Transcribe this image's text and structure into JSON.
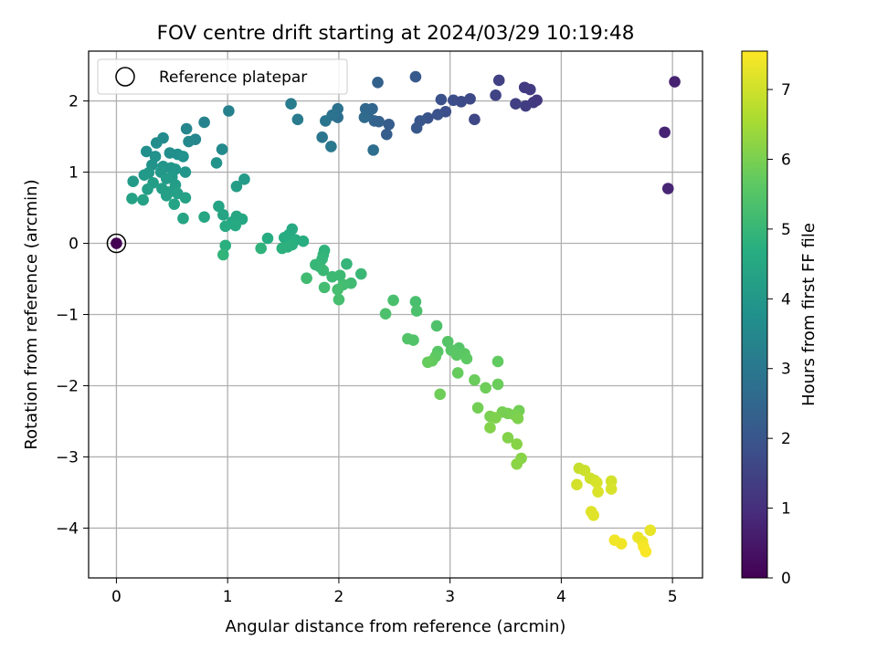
{
  "chart_data": {
    "type": "scatter",
    "title": "FOV centre drift starting at 2024/03/29 10:19:48",
    "xlabel": "Angular distance from reference (arcmin)",
    "ylabel": "Rotation from reference (arcmin)",
    "xlim": [
      -0.25,
      5.27
    ],
    "ylim": [
      -4.7,
      2.7
    ],
    "xticks": [
      0,
      1,
      2,
      3,
      4,
      5
    ],
    "yticks": [
      -4,
      -3,
      -2,
      -1,
      0,
      1,
      2
    ],
    "grid": true,
    "legend": {
      "placement": "top-left",
      "entries": [
        "Reference platepar"
      ]
    },
    "reference_point": {
      "x": 0,
      "y": 0
    },
    "colorbar": {
      "label": "Hours from first FF file",
      "range": [
        0,
        7.55
      ],
      "ticks": [
        0,
        1,
        2,
        3,
        4,
        5,
        6,
        7
      ],
      "colormap": "viridis"
    },
    "points": [
      {
        "x": 0.0,
        "y": 0.0,
        "h": 0.0
      },
      {
        "x": 5.02,
        "y": 2.27,
        "h": 0.7
      },
      {
        "x": 4.93,
        "y": 1.56,
        "h": 0.75
      },
      {
        "x": 4.96,
        "y": 0.77,
        "h": 0.8
      },
      {
        "x": 3.78,
        "y": 2.01,
        "h": 1.2
      },
      {
        "x": 3.75,
        "y": 1.98,
        "h": 1.25
      },
      {
        "x": 3.72,
        "y": 2.16,
        "h": 1.3
      },
      {
        "x": 3.67,
        "y": 2.19,
        "h": 1.3
      },
      {
        "x": 3.68,
        "y": 1.93,
        "h": 1.35
      },
      {
        "x": 3.59,
        "y": 1.96,
        "h": 1.4
      },
      {
        "x": 3.44,
        "y": 2.29,
        "h": 1.45
      },
      {
        "x": 3.41,
        "y": 2.08,
        "h": 1.5
      },
      {
        "x": 3.22,
        "y": 1.74,
        "h": 1.6
      },
      {
        "x": 3.18,
        "y": 2.03,
        "h": 1.65
      },
      {
        "x": 3.1,
        "y": 1.99,
        "h": 1.7
      },
      {
        "x": 3.03,
        "y": 2.01,
        "h": 1.75
      },
      {
        "x": 2.96,
        "y": 1.85,
        "h": 1.8
      },
      {
        "x": 2.92,
        "y": 2.02,
        "h": 1.85
      },
      {
        "x": 2.89,
        "y": 1.81,
        "h": 1.9
      },
      {
        "x": 2.8,
        "y": 1.76,
        "h": 1.95
      },
      {
        "x": 2.73,
        "y": 1.72,
        "h": 2.0
      },
      {
        "x": 2.7,
        "y": 1.62,
        "h": 2.05
      },
      {
        "x": 2.69,
        "y": 2.34,
        "h": 2.1
      },
      {
        "x": 2.45,
        "y": 1.67,
        "h": 2.2
      },
      {
        "x": 2.43,
        "y": 1.53,
        "h": 2.25
      },
      {
        "x": 2.35,
        "y": 2.26,
        "h": 2.3
      },
      {
        "x": 2.36,
        "y": 1.71,
        "h": 2.35
      },
      {
        "x": 2.32,
        "y": 1.72,
        "h": 2.4
      },
      {
        "x": 2.3,
        "y": 1.89,
        "h": 2.45
      },
      {
        "x": 2.26,
        "y": 1.8,
        "h": 2.5
      },
      {
        "x": 2.24,
        "y": 1.89,
        "h": 2.55
      },
      {
        "x": 2.23,
        "y": 1.77,
        "h": 2.6
      },
      {
        "x": 2.31,
        "y": 1.31,
        "h": 2.7
      },
      {
        "x": 1.99,
        "y": 1.77,
        "h": 2.75
      },
      {
        "x": 1.99,
        "y": 1.89,
        "h": 2.8
      },
      {
        "x": 1.94,
        "y": 1.8,
        "h": 2.85
      },
      {
        "x": 1.88,
        "y": 1.72,
        "h": 2.9
      },
      {
        "x": 1.85,
        "y": 1.49,
        "h": 2.95
      },
      {
        "x": 1.93,
        "y": 1.36,
        "h": 3.0
      },
      {
        "x": 1.63,
        "y": 1.74,
        "h": 3.1
      },
      {
        "x": 1.57,
        "y": 1.96,
        "h": 3.15
      },
      {
        "x": 1.01,
        "y": 1.86,
        "h": 3.3
      },
      {
        "x": 0.79,
        "y": 1.7,
        "h": 3.35
      },
      {
        "x": 0.63,
        "y": 1.61,
        "h": 3.4
      },
      {
        "x": 0.71,
        "y": 1.46,
        "h": 3.45
      },
      {
        "x": 0.65,
        "y": 1.43,
        "h": 3.5
      },
      {
        "x": 0.95,
        "y": 1.32,
        "h": 3.55
      },
      {
        "x": 0.42,
        "y": 1.48,
        "h": 3.6
      },
      {
        "x": 0.36,
        "y": 1.41,
        "h": 3.65
      },
      {
        "x": 0.27,
        "y": 1.29,
        "h": 3.7
      },
      {
        "x": 0.48,
        "y": 1.27,
        "h": 3.7
      },
      {
        "x": 0.55,
        "y": 1.25,
        "h": 3.75
      },
      {
        "x": 0.6,
        "y": 1.22,
        "h": 3.8
      },
      {
        "x": 0.35,
        "y": 1.22,
        "h": 3.8
      },
      {
        "x": 0.9,
        "y": 1.13,
        "h": 3.85
      },
      {
        "x": 0.32,
        "y": 1.1,
        "h": 3.85
      },
      {
        "x": 0.42,
        "y": 1.08,
        "h": 3.9
      },
      {
        "x": 0.49,
        "y": 1.06,
        "h": 3.9
      },
      {
        "x": 0.53,
        "y": 1.04,
        "h": 3.95
      },
      {
        "x": 0.62,
        "y": 1.0,
        "h": 3.95
      },
      {
        "x": 0.4,
        "y": 1.0,
        "h": 4.0
      },
      {
        "x": 0.29,
        "y": 0.99,
        "h": 4.0
      },
      {
        "x": 0.25,
        "y": 0.96,
        "h": 4.05
      },
      {
        "x": 0.5,
        "y": 0.93,
        "h": 4.05
      },
      {
        "x": 0.45,
        "y": 0.91,
        "h": 4.1
      },
      {
        "x": 1.15,
        "y": 0.9,
        "h": 4.1
      },
      {
        "x": 0.15,
        "y": 0.87,
        "h": 4.1
      },
      {
        "x": 0.33,
        "y": 0.85,
        "h": 4.15
      },
      {
        "x": 0.53,
        "y": 0.82,
        "h": 4.15
      },
      {
        "x": 1.08,
        "y": 0.8,
        "h": 4.15
      },
      {
        "x": 0.41,
        "y": 0.77,
        "h": 4.2
      },
      {
        "x": 0.28,
        "y": 0.76,
        "h": 4.2
      },
      {
        "x": 0.47,
        "y": 0.72,
        "h": 4.2
      },
      {
        "x": 0.55,
        "y": 0.7,
        "h": 4.25
      },
      {
        "x": 0.45,
        "y": 0.67,
        "h": 4.25
      },
      {
        "x": 0.62,
        "y": 0.64,
        "h": 4.3
      },
      {
        "x": 0.14,
        "y": 0.63,
        "h": 4.3
      },
      {
        "x": 0.24,
        "y": 0.61,
        "h": 4.3
      },
      {
        "x": 0.52,
        "y": 0.55,
        "h": 4.35
      },
      {
        "x": 0.92,
        "y": 0.52,
        "h": 4.35
      },
      {
        "x": 0.96,
        "y": 0.4,
        "h": 4.4
      },
      {
        "x": 0.6,
        "y": 0.35,
        "h": 4.4
      },
      {
        "x": 0.79,
        "y": 0.37,
        "h": 4.45
      },
      {
        "x": 1.08,
        "y": 0.38,
        "h": 4.45
      },
      {
        "x": 1.13,
        "y": 0.34,
        "h": 4.5
      },
      {
        "x": 1.04,
        "y": 0.3,
        "h": 4.5
      },
      {
        "x": 0.98,
        "y": 0.24,
        "h": 4.55
      },
      {
        "x": 1.07,
        "y": 0.25,
        "h": 4.55
      },
      {
        "x": 1.58,
        "y": 0.2,
        "h": 4.6
      },
      {
        "x": 1.55,
        "y": 0.12,
        "h": 4.6
      },
      {
        "x": 1.51,
        "y": 0.08,
        "h": 4.65
      },
      {
        "x": 1.36,
        "y": 0.07,
        "h": 4.65
      },
      {
        "x": 1.61,
        "y": 0.05,
        "h": 4.7
      },
      {
        "x": 1.68,
        "y": 0.03,
        "h": 4.7
      },
      {
        "x": 0.98,
        "y": -0.03,
        "h": 4.75
      },
      {
        "x": 1.58,
        "y": -0.02,
        "h": 4.75
      },
      {
        "x": 1.54,
        "y": -0.05,
        "h": 4.8
      },
      {
        "x": 1.49,
        "y": -0.07,
        "h": 4.8
      },
      {
        "x": 1.3,
        "y": -0.07,
        "h": 4.85
      },
      {
        "x": 1.87,
        "y": -0.1,
        "h": 4.85
      },
      {
        "x": 1.86,
        "y": -0.16,
        "h": 4.9
      },
      {
        "x": 0.96,
        "y": -0.16,
        "h": 4.9
      },
      {
        "x": 1.85,
        "y": -0.22,
        "h": 4.95
      },
      {
        "x": 2.07,
        "y": -0.29,
        "h": 4.95
      },
      {
        "x": 1.79,
        "y": -0.3,
        "h": 5.0
      },
      {
        "x": 1.83,
        "y": -0.33,
        "h": 5.0
      },
      {
        "x": 1.86,
        "y": -0.38,
        "h": 5.05
      },
      {
        "x": 2.2,
        "y": -0.43,
        "h": 5.05
      },
      {
        "x": 2.01,
        "y": -0.45,
        "h": 5.1
      },
      {
        "x": 1.94,
        "y": -0.47,
        "h": 5.1
      },
      {
        "x": 1.71,
        "y": -0.49,
        "h": 5.15
      },
      {
        "x": 2.11,
        "y": -0.56,
        "h": 5.15
      },
      {
        "x": 2.04,
        "y": -0.58,
        "h": 5.2
      },
      {
        "x": 1.87,
        "y": -0.62,
        "h": 5.2
      },
      {
        "x": 1.99,
        "y": -0.65,
        "h": 5.25
      },
      {
        "x": 2.0,
        "y": -0.79,
        "h": 5.25
      },
      {
        "x": 2.49,
        "y": -0.8,
        "h": 5.3
      },
      {
        "x": 2.69,
        "y": -0.82,
        "h": 5.3
      },
      {
        "x": 2.7,
        "y": -0.95,
        "h": 5.35
      },
      {
        "x": 2.42,
        "y": -0.99,
        "h": 5.35
      },
      {
        "x": 2.88,
        "y": -1.16,
        "h": 5.4
      },
      {
        "x": 2.62,
        "y": -1.34,
        "h": 5.45
      },
      {
        "x": 2.67,
        "y": -1.36,
        "h": 5.45
      },
      {
        "x": 2.98,
        "y": -1.38,
        "h": 5.5
      },
      {
        "x": 3.08,
        "y": -1.47,
        "h": 5.5
      },
      {
        "x": 3.01,
        "y": -1.5,
        "h": 5.55
      },
      {
        "x": 2.89,
        "y": -1.52,
        "h": 5.55
      },
      {
        "x": 3.13,
        "y": -1.55,
        "h": 5.6
      },
      {
        "x": 3.06,
        "y": -1.57,
        "h": 5.6
      },
      {
        "x": 2.87,
        "y": -1.59,
        "h": 5.65
      },
      {
        "x": 3.15,
        "y": -1.62,
        "h": 5.65
      },
      {
        "x": 2.84,
        "y": -1.65,
        "h": 5.7
      },
      {
        "x": 3.43,
        "y": -1.66,
        "h": 5.7
      },
      {
        "x": 2.8,
        "y": -1.67,
        "h": 5.75
      },
      {
        "x": 3.07,
        "y": -1.82,
        "h": 5.75
      },
      {
        "x": 3.22,
        "y": -1.92,
        "h": 5.8
      },
      {
        "x": 3.43,
        "y": -1.98,
        "h": 5.8
      },
      {
        "x": 3.32,
        "y": -2.03,
        "h": 5.85
      },
      {
        "x": 2.91,
        "y": -2.12,
        "h": 5.85
      },
      {
        "x": 3.25,
        "y": -2.31,
        "h": 5.9
      },
      {
        "x": 3.62,
        "y": -2.35,
        "h": 5.9
      },
      {
        "x": 3.47,
        "y": -2.37,
        "h": 5.95
      },
      {
        "x": 3.52,
        "y": -2.39,
        "h": 5.95
      },
      {
        "x": 3.58,
        "y": -2.41,
        "h": 6.0
      },
      {
        "x": 3.36,
        "y": -2.43,
        "h": 6.0
      },
      {
        "x": 3.41,
        "y": -2.45,
        "h": 6.05
      },
      {
        "x": 3.61,
        "y": -2.46,
        "h": 6.05
      },
      {
        "x": 3.36,
        "y": -2.59,
        "h": 6.1
      },
      {
        "x": 3.52,
        "y": -2.73,
        "h": 6.1
      },
      {
        "x": 3.6,
        "y": -2.82,
        "h": 6.15
      },
      {
        "x": 3.64,
        "y": -3.02,
        "h": 6.15
      },
      {
        "x": 3.6,
        "y": -3.1,
        "h": 6.2
      },
      {
        "x": 4.16,
        "y": -3.16,
        "h": 6.9
      },
      {
        "x": 4.21,
        "y": -3.19,
        "h": 6.95
      },
      {
        "x": 4.26,
        "y": -3.3,
        "h": 7.0
      },
      {
        "x": 4.3,
        "y": -3.33,
        "h": 7.0
      },
      {
        "x": 4.45,
        "y": -3.34,
        "h": 7.05
      },
      {
        "x": 4.14,
        "y": -3.39,
        "h": 7.05
      },
      {
        "x": 4.32,
        "y": -3.36,
        "h": 7.1
      },
      {
        "x": 4.45,
        "y": -3.45,
        "h": 7.1
      },
      {
        "x": 4.33,
        "y": -3.49,
        "h": 7.15
      },
      {
        "x": 4.27,
        "y": -3.77,
        "h": 7.2
      },
      {
        "x": 4.29,
        "y": -3.82,
        "h": 7.2
      },
      {
        "x": 4.8,
        "y": -4.03,
        "h": 7.3
      },
      {
        "x": 4.69,
        "y": -4.13,
        "h": 7.35
      },
      {
        "x": 4.73,
        "y": -4.19,
        "h": 7.35
      },
      {
        "x": 4.48,
        "y": -4.17,
        "h": 7.4
      },
      {
        "x": 4.54,
        "y": -4.22,
        "h": 7.4
      },
      {
        "x": 4.74,
        "y": -4.26,
        "h": 7.45
      },
      {
        "x": 4.76,
        "y": -4.33,
        "h": 7.5
      }
    ]
  }
}
